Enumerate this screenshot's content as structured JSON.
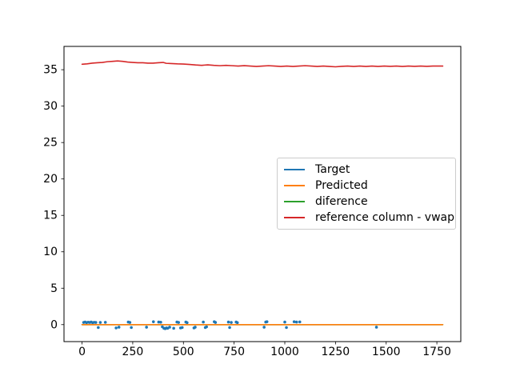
{
  "figure": {
    "background": "#ffffff",
    "title": ""
  },
  "chart_data": {
    "type": "line",
    "title": "",
    "xlabel": "",
    "ylabel": "",
    "xlim": [
      -89,
      1868
    ],
    "ylim": [
      -2.33,
      38.2
    ],
    "xticks": [
      0,
      250,
      500,
      750,
      1000,
      1250,
      1500,
      1750
    ],
    "yticks": [
      0,
      5,
      10,
      15,
      20,
      25,
      30,
      35
    ],
    "grid": false,
    "legend": {
      "position": "center-right",
      "entries": [
        {
          "label": "Target",
          "color": "#1f77b4"
        },
        {
          "label": "Predicted",
          "color": "#ff7f0e"
        },
        {
          "label": "diference",
          "color": "#2ca02c"
        },
        {
          "label": "reference column - vwap",
          "color": "#d62728"
        }
      ]
    },
    "series": [
      {
        "name": "Target",
        "type": "scatter",
        "color": "#1f77b4",
        "marker_size": 1.8,
        "points": [
          [
            8,
            0.3
          ],
          [
            15,
            0.35
          ],
          [
            22,
            0.28
          ],
          [
            30,
            0.33
          ],
          [
            38,
            0.3
          ],
          [
            45,
            0.35
          ],
          [
            52,
            0.28
          ],
          [
            60,
            0.32
          ],
          [
            68,
            0.3
          ],
          [
            80,
            -0.4
          ],
          [
            90,
            0.3
          ],
          [
            115,
            0.32
          ],
          [
            168,
            -0.45
          ],
          [
            182,
            -0.35
          ],
          [
            228,
            0.35
          ],
          [
            236,
            0.3
          ],
          [
            243,
            -0.4
          ],
          [
            318,
            -0.35
          ],
          [
            352,
            0.4
          ],
          [
            378,
            0.35
          ],
          [
            388,
            0.33
          ],
          [
            396,
            -0.3
          ],
          [
            404,
            -0.5
          ],
          [
            410,
            -0.55
          ],
          [
            416,
            -0.45
          ],
          [
            422,
            -0.5
          ],
          [
            432,
            -0.35
          ],
          [
            452,
            -0.5
          ],
          [
            468,
            0.35
          ],
          [
            476,
            0.3
          ],
          [
            486,
            -0.45
          ],
          [
            494,
            -0.4
          ],
          [
            512,
            0.35
          ],
          [
            518,
            0.28
          ],
          [
            552,
            -0.45
          ],
          [
            558,
            -0.35
          ],
          [
            598,
            0.35
          ],
          [
            608,
            -0.4
          ],
          [
            614,
            -0.3
          ],
          [
            652,
            0.4
          ],
          [
            658,
            0.3
          ],
          [
            722,
            0.35
          ],
          [
            728,
            -0.4
          ],
          [
            736,
            0.3
          ],
          [
            760,
            0.35
          ],
          [
            766,
            0.28
          ],
          [
            898,
            -0.35
          ],
          [
            906,
            0.35
          ],
          [
            912,
            0.4
          ],
          [
            1000,
            0.35
          ],
          [
            1008,
            -0.4
          ],
          [
            1046,
            0.4
          ],
          [
            1058,
            0.35
          ],
          [
            1074,
            0.37
          ],
          [
            1452,
            -0.35
          ]
        ]
      },
      {
        "name": "diference",
        "type": "line",
        "color": "#2ca02c",
        "points": [
          [
            0,
            0
          ],
          [
            1779,
            0
          ]
        ]
      },
      {
        "name": "Predicted",
        "type": "line",
        "color": "#ff7f0e",
        "points": [
          [
            0,
            0
          ],
          [
            1779,
            0
          ]
        ]
      },
      {
        "name": "reference column - vwap",
        "type": "line",
        "color": "#d62728",
        "points": [
          [
            0,
            35.75
          ],
          [
            25,
            35.8
          ],
          [
            50,
            35.9
          ],
          [
            75,
            35.95
          ],
          [
            100,
            36.0
          ],
          [
            125,
            36.1
          ],
          [
            150,
            36.15
          ],
          [
            175,
            36.2
          ],
          [
            200,
            36.15
          ],
          [
            225,
            36.05
          ],
          [
            250,
            36.0
          ],
          [
            275,
            35.95
          ],
          [
            300,
            35.95
          ],
          [
            325,
            35.9
          ],
          [
            350,
            35.9
          ],
          [
            375,
            35.95
          ],
          [
            400,
            36.0
          ],
          [
            415,
            35.88
          ],
          [
            440,
            35.85
          ],
          [
            470,
            35.8
          ],
          [
            500,
            35.78
          ],
          [
            530,
            35.72
          ],
          [
            560,
            35.65
          ],
          [
            590,
            35.6
          ],
          [
            620,
            35.67
          ],
          [
            650,
            35.6
          ],
          [
            680,
            35.55
          ],
          [
            710,
            35.6
          ],
          [
            740,
            35.55
          ],
          [
            770,
            35.5
          ],
          [
            800,
            35.56
          ],
          [
            830,
            35.5
          ],
          [
            860,
            35.45
          ],
          [
            890,
            35.5
          ],
          [
            920,
            35.55
          ],
          [
            950,
            35.5
          ],
          [
            980,
            35.45
          ],
          [
            1010,
            35.5
          ],
          [
            1040,
            35.45
          ],
          [
            1070,
            35.5
          ],
          [
            1100,
            35.55
          ],
          [
            1130,
            35.5
          ],
          [
            1160,
            35.45
          ],
          [
            1190,
            35.5
          ],
          [
            1220,
            35.45
          ],
          [
            1250,
            35.4
          ],
          [
            1280,
            35.46
          ],
          [
            1310,
            35.5
          ],
          [
            1340,
            35.45
          ],
          [
            1370,
            35.5
          ],
          [
            1400,
            35.45
          ],
          [
            1430,
            35.5
          ],
          [
            1460,
            35.45
          ],
          [
            1490,
            35.5
          ],
          [
            1520,
            35.46
          ],
          [
            1550,
            35.5
          ],
          [
            1580,
            35.45
          ],
          [
            1610,
            35.5
          ],
          [
            1640,
            35.46
          ],
          [
            1670,
            35.5
          ],
          [
            1700,
            35.46
          ],
          [
            1730,
            35.5
          ],
          [
            1779,
            35.5
          ]
        ]
      }
    ]
  }
}
